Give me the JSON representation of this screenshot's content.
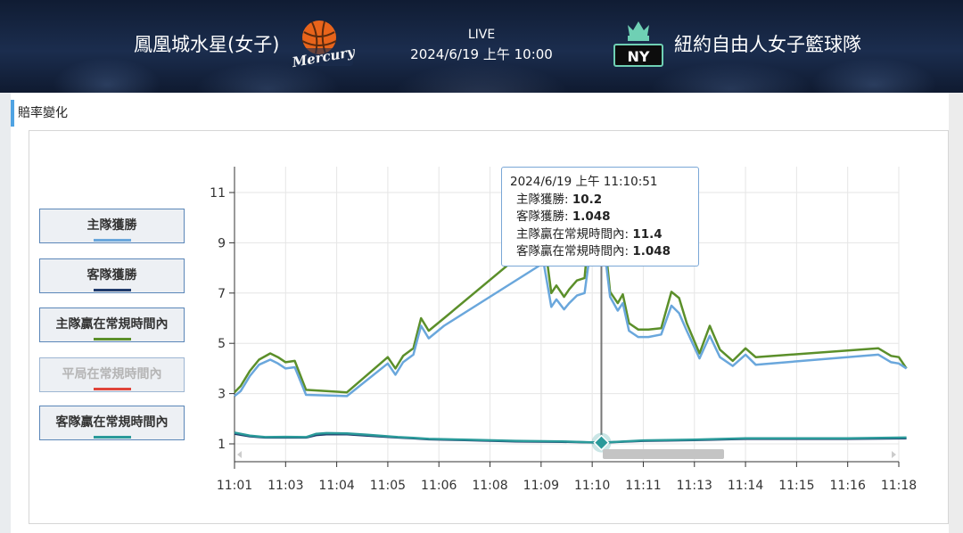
{
  "header": {
    "home_team": "鳳凰城水星(女子)",
    "away_team": "紐約自由人女子籃球隊",
    "status": "LIVE",
    "datetime": "2024/6/19 上午 10:00",
    "home_logo_text": "Mercury",
    "away_logo_text": "NY"
  },
  "panel": {
    "title": "賠率變化"
  },
  "legend": [
    {
      "label": "主隊獲勝",
      "color": "#6aa7dc",
      "active": true
    },
    {
      "label": "客隊獲勝",
      "color": "#1f3a6b",
      "active": true
    },
    {
      "label": "主隊贏在常規時間內",
      "color": "#5b8f2a",
      "active": true
    },
    {
      "label": "平局在常規時間內",
      "color": "#e0443a",
      "active": false
    },
    {
      "label": "客隊贏在常規時間內",
      "color": "#2a9a9a",
      "active": true
    }
  ],
  "tooltip": {
    "time": "2024/6/19 上午 11:10:51",
    "rows": [
      {
        "label": "主隊獲勝: ",
        "value": "10.2"
      },
      {
        "label": "客隊獲勝: ",
        "value": "1.048"
      },
      {
        "label": "主隊贏在常規時間內: ",
        "value": "11.4"
      },
      {
        "label": "客隊贏在常規時間內: ",
        "value": "1.048"
      }
    ]
  },
  "chart_data": {
    "type": "line",
    "xlabel": "",
    "ylabel": "",
    "x_ticks": [
      "11:01",
      "11:03",
      "11:04",
      "11:05",
      "11:06",
      "11:08",
      "11:09",
      "11:10",
      "11:11",
      "11:13",
      "11:14",
      "11:15",
      "11:16",
      "11:18"
    ],
    "y_ticks": [
      1,
      3,
      5,
      7,
      9,
      11
    ],
    "ylim": [
      0.6,
      11.8
    ],
    "grid": true,
    "crosshair_x": 7.18,
    "series": [
      {
        "name": "主隊贏在常規時間內",
        "color": "#5b8f2a",
        "x": [
          0,
          0.12,
          0.3,
          0.48,
          0.7,
          0.85,
          1.0,
          1.18,
          1.4,
          2.2,
          3.0,
          3.15,
          3.3,
          3.5,
          3.65,
          3.8,
          4.1,
          6.05,
          6.2,
          6.3,
          6.45,
          6.55,
          6.7,
          6.85,
          6.95,
          7.15,
          7.35,
          7.5,
          7.6,
          7.72,
          7.9,
          8.1,
          8.35,
          8.55,
          8.7,
          8.85,
          9.1,
          9.3,
          9.5,
          9.75,
          10.0,
          10.2,
          12.6,
          12.85,
          13.0,
          13.15
        ],
        "y": [
          3.05,
          3.3,
          3.9,
          4.35,
          4.6,
          4.45,
          4.25,
          4.3,
          3.15,
          3.05,
          4.45,
          4.0,
          4.5,
          4.8,
          6.0,
          5.5,
          6.0,
          9.3,
          7.0,
          7.3,
          6.85,
          7.15,
          7.5,
          7.6,
          9.8,
          11.0,
          7.05,
          6.6,
          6.95,
          5.8,
          5.55,
          5.55,
          5.6,
          7.05,
          6.8,
          5.8,
          4.6,
          5.7,
          4.75,
          4.3,
          4.8,
          4.45,
          4.8,
          4.5,
          4.45,
          4.0
        ]
      },
      {
        "name": "主隊獲勝",
        "color": "#6aa7dc",
        "x": [
          0,
          0.12,
          0.3,
          0.48,
          0.7,
          0.85,
          1.0,
          1.18,
          1.4,
          2.2,
          3.0,
          3.15,
          3.3,
          3.5,
          3.65,
          3.8,
          4.1,
          6.05,
          6.2,
          6.3,
          6.45,
          6.55,
          6.7,
          6.85,
          6.95,
          7.15,
          7.35,
          7.5,
          7.6,
          7.72,
          7.9,
          8.1,
          8.35,
          8.55,
          8.7,
          8.85,
          9.1,
          9.3,
          9.5,
          9.75,
          10.0,
          10.2,
          12.6,
          12.85,
          13.0,
          13.15
        ],
        "y": [
          2.9,
          3.1,
          3.7,
          4.15,
          4.35,
          4.2,
          4.0,
          4.05,
          2.95,
          2.9,
          4.2,
          3.75,
          4.25,
          4.55,
          5.7,
          5.2,
          5.7,
          8.2,
          6.45,
          6.75,
          6.35,
          6.6,
          6.9,
          7.0,
          8.5,
          10.2,
          6.85,
          6.3,
          6.6,
          5.5,
          5.25,
          5.25,
          5.35,
          6.5,
          6.2,
          5.5,
          4.4,
          5.3,
          4.45,
          4.1,
          4.55,
          4.15,
          4.55,
          4.25,
          4.2,
          4.0
        ]
      },
      {
        "name": "客隊獲勝",
        "color": "#1f3a6b",
        "x": [
          0,
          0.3,
          0.6,
          1.0,
          1.4,
          1.6,
          1.8,
          2.2,
          2.6,
          3.2,
          3.5,
          3.8,
          4.5,
          5.5,
          6.4,
          7.18,
          8.0,
          9.0,
          10.0,
          11.0,
          12.0,
          13.15
        ],
        "y": [
          1.4,
          1.3,
          1.25,
          1.25,
          1.25,
          1.35,
          1.38,
          1.38,
          1.33,
          1.25,
          1.22,
          1.18,
          1.15,
          1.1,
          1.08,
          1.048,
          1.12,
          1.15,
          1.2,
          1.2,
          1.2,
          1.22
        ]
      },
      {
        "name": "客隊贏在常規時間內",
        "color": "#2a9a9a",
        "x": [
          0,
          0.3,
          0.6,
          1.0,
          1.4,
          1.6,
          1.8,
          2.2,
          2.6,
          3.2,
          3.5,
          3.8,
          4.5,
          5.5,
          6.4,
          7.18,
          8.0,
          9.0,
          10.0,
          11.0,
          12.0,
          13.15
        ],
        "y": [
          1.45,
          1.33,
          1.27,
          1.28,
          1.27,
          1.4,
          1.43,
          1.42,
          1.36,
          1.27,
          1.24,
          1.2,
          1.17,
          1.12,
          1.1,
          1.048,
          1.14,
          1.17,
          1.22,
          1.22,
          1.22,
          1.25
        ]
      }
    ]
  }
}
